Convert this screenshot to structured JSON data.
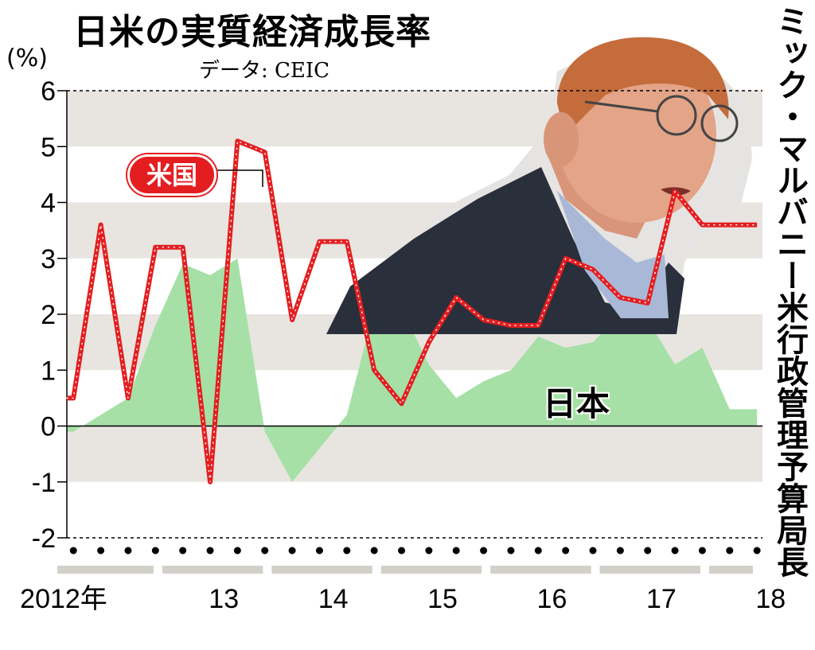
{
  "title": "日米の実質経済成長率",
  "source": "データ: CEIC",
  "unit": "(%)",
  "side_caption": "ミック・マルバニー米行政管理予算局長",
  "chart_data": {
    "type": "line",
    "categories": [
      "2012年",
      "13",
      "14",
      "15",
      "16",
      "17",
      "18"
    ],
    "ylim": [
      -2,
      6
    ],
    "yticks": [
      "6",
      "5",
      "4",
      "3",
      "2",
      "1",
      "0",
      "-1",
      "-2"
    ],
    "grid": "alternating horizontal bands",
    "series": [
      {
        "name": "米国",
        "type": "line",
        "color": "#e41e20",
        "x": [
          2011.94,
          2012.0,
          2012.25,
          2012.5,
          2012.75,
          2013.0,
          2013.25,
          2013.5,
          2013.75,
          2014.0,
          2014.25,
          2014.5,
          2014.75,
          2015.0,
          2015.25,
          2015.5,
          2015.75,
          2016.0,
          2016.25,
          2016.5,
          2016.75,
          2017.0,
          2017.25,
          2017.5,
          2017.75,
          2018.0,
          2018.25
        ],
        "values": [
          0.5,
          0.5,
          3.6,
          0.5,
          3.2,
          3.2,
          -1.0,
          5.1,
          4.9,
          1.9,
          3.3,
          3.3,
          1.0,
          0.4,
          1.5,
          2.3,
          1.9,
          1.8,
          1.8,
          3.0,
          2.8,
          2.3,
          2.2,
          4.2,
          3.6,
          3.6,
          3.6
        ]
      },
      {
        "name": "日本",
        "type": "area",
        "color": "#a6e0a6",
        "x": [
          2011.94,
          2012.0,
          2012.25,
          2012.5,
          2012.75,
          2013.0,
          2013.25,
          2013.5,
          2013.75,
          2014.0,
          2014.25,
          2014.5,
          2014.75,
          2015.0,
          2015.25,
          2015.5,
          2015.75,
          2016.0,
          2016.25,
          2016.5,
          2016.75,
          2017.0,
          2017.25,
          2017.5,
          2017.75,
          2018.0,
          2018.25
        ],
        "values": [
          -0.1,
          -0.1,
          0.2,
          0.5,
          1.8,
          2.9,
          2.7,
          3.0,
          -0.1,
          -1.0,
          -0.4,
          0.2,
          2.1,
          2.1,
          1.1,
          0.5,
          0.8,
          1.0,
          1.6,
          1.4,
          1.5,
          2.0,
          1.9,
          1.1,
          1.4,
          0.3,
          0.3
        ]
      }
    ],
    "labels": {
      "us": "米国",
      "japan": "日本"
    }
  }
}
